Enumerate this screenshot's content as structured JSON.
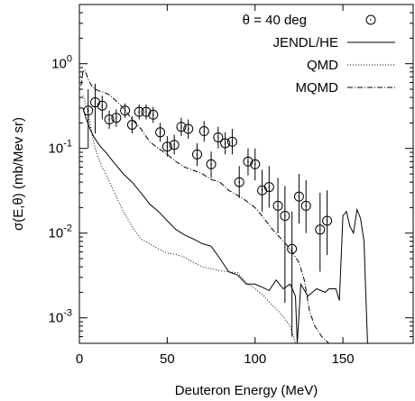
{
  "chart_data": {
    "type": "scatter",
    "title": "",
    "xlabel": "Deuteron Energy (MeV)",
    "ylabel": "σ(E,θ) (mb/Mev sr)",
    "xlim": [
      0,
      190
    ],
    "ylim": [
      0.0005,
      5
    ],
    "y_scale": "log",
    "x_ticks": [
      0,
      50,
      100,
      150
    ],
    "y_ticks": [
      0.001,
      0.01,
      0.1,
      1
    ],
    "y_tick_labels": [
      {
        "base": "10",
        "exp": "-3"
      },
      {
        "base": "10",
        "exp": "-2"
      },
      {
        "base": "10",
        "exp": "-1"
      },
      {
        "base": "10",
        "exp": "0"
      }
    ],
    "grid": false,
    "legend_position": "top-right",
    "series": [
      {
        "name": "θ = 40 deg",
        "kind": "points_with_errorbars",
        "points": [
          {
            "x": 5,
            "y": 0.28,
            "lo": 0.1,
            "hi": 0.5
          },
          {
            "x": 9,
            "y": 0.35,
            "lo": 0.15,
            "hi": 0.58
          },
          {
            "x": 13,
            "y": 0.32,
            "lo": 0.22,
            "hi": 0.42
          },
          {
            "x": 17,
            "y": 0.22,
            "lo": 0.17,
            "hi": 0.28
          },
          {
            "x": 21,
            "y": 0.23,
            "lo": 0.18,
            "hi": 0.29
          },
          {
            "x": 26,
            "y": 0.28,
            "lo": 0.23,
            "hi": 0.34
          },
          {
            "x": 30,
            "y": 0.19,
            "lo": 0.15,
            "hi": 0.24
          },
          {
            "x": 34,
            "y": 0.27,
            "lo": 0.22,
            "hi": 0.33
          },
          {
            "x": 38,
            "y": 0.27,
            "lo": 0.22,
            "hi": 0.33
          },
          {
            "x": 42,
            "y": 0.25,
            "lo": 0.2,
            "hi": 0.31
          },
          {
            "x": 46,
            "y": 0.155,
            "lo": 0.12,
            "hi": 0.2
          },
          {
            "x": 50,
            "y": 0.105,
            "lo": 0.08,
            "hi": 0.14
          },
          {
            "x": 54,
            "y": 0.11,
            "lo": 0.085,
            "hi": 0.145
          },
          {
            "x": 58,
            "y": 0.18,
            "lo": 0.14,
            "hi": 0.23
          },
          {
            "x": 62,
            "y": 0.17,
            "lo": 0.13,
            "hi": 0.22
          },
          {
            "x": 67,
            "y": 0.085,
            "lo": 0.062,
            "hi": 0.115
          },
          {
            "x": 71,
            "y": 0.16,
            "lo": 0.12,
            "hi": 0.21
          },
          {
            "x": 75,
            "y": 0.065,
            "lo": 0.045,
            "hi": 0.092
          },
          {
            "x": 79,
            "y": 0.135,
            "lo": 0.1,
            "hi": 0.18
          },
          {
            "x": 83,
            "y": 0.115,
            "lo": 0.085,
            "hi": 0.155
          },
          {
            "x": 87,
            "y": 0.12,
            "lo": 0.085,
            "hi": 0.17
          },
          {
            "x": 91,
            "y": 0.04,
            "lo": 0.026,
            "hi": 0.062
          },
          {
            "x": 96,
            "y": 0.07,
            "lo": 0.048,
            "hi": 0.1
          },
          {
            "x": 100,
            "y": 0.065,
            "lo": 0.042,
            "hi": 0.1
          },
          {
            "x": 104,
            "y": 0.032,
            "lo": 0.018,
            "hi": 0.056
          },
          {
            "x": 108,
            "y": 0.035,
            "lo": 0.02,
            "hi": 0.062
          },
          {
            "x": 113,
            "y": 0.021,
            "lo": 0.01,
            "hi": 0.045
          },
          {
            "x": 117,
            "y": 0.016,
            "lo": 0.0015,
            "hi": 0.036
          },
          {
            "x": 121,
            "y": 0.0065,
            "lo": 0.0006,
            "hi": 0.018
          },
          {
            "x": 125,
            "y": 0.027,
            "lo": 0.013,
            "hi": 0.05
          },
          {
            "x": 129,
            "y": 0.021,
            "lo": 0.01,
            "hi": 0.042
          },
          {
            "x": 137,
            "y": 0.011,
            "lo": 0.0035,
            "hi": 0.03
          },
          {
            "x": 141,
            "y": 0.014,
            "lo": 0.0055,
            "hi": 0.032
          }
        ]
      },
      {
        "name": "JENDL/HE",
        "kind": "line_solid",
        "x": [
          2,
          4,
          6,
          8,
          10,
          12,
          15,
          18,
          21,
          25,
          30,
          35,
          40,
          45,
          50,
          55,
          60,
          65,
          70,
          75,
          80,
          85,
          90,
          95,
          100,
          104,
          108,
          112,
          116,
          120,
          123,
          124,
          126,
          130,
          135,
          140,
          142,
          146,
          148,
          150,
          152,
          154,
          156,
          158,
          160,
          162,
          163,
          164
        ],
        "y": [
          0.3,
          0.22,
          0.17,
          0.14,
          0.12,
          0.105,
          0.09,
          0.075,
          0.063,
          0.05,
          0.04,
          0.03,
          0.022,
          0.018,
          0.014,
          0.011,
          0.0095,
          0.0085,
          0.0075,
          0.007,
          0.005,
          0.0035,
          0.0032,
          0.0025,
          0.0025,
          0.0023,
          0.0021,
          0.0028,
          0.0022,
          0.0025,
          0.0018,
          0.0005,
          0.0025,
          0.0018,
          0.0022,
          0.002,
          0.0022,
          0.0022,
          0.0016,
          0.016,
          0.018,
          0.012,
          0.01,
          0.019,
          0.015,
          0.008,
          0.002,
          0.0005
        ]
      },
      {
        "name": "QMD",
        "kind": "line_dotted",
        "x": [
          2,
          4,
          6,
          8,
          10,
          13,
          16,
          20,
          25,
          30,
          35,
          40,
          45,
          50,
          55,
          60,
          65,
          70,
          75,
          80,
          85,
          90,
          95,
          100,
          105,
          110,
          115,
          120,
          123
        ],
        "y": [
          0.42,
          0.32,
          0.2,
          0.12,
          0.085,
          0.06,
          0.045,
          0.03,
          0.018,
          0.012,
          0.0085,
          0.0075,
          0.0065,
          0.0058,
          0.0056,
          0.0052,
          0.0045,
          0.004,
          0.0038,
          0.0036,
          0.0035,
          0.0034,
          0.0026,
          0.0022,
          0.0018,
          0.0014,
          0.0011,
          0.0008,
          0.0005
        ]
      },
      {
        "name": "MQMD",
        "kind": "line_dashdot",
        "x": [
          1,
          2,
          3,
          4,
          5,
          7,
          9,
          11,
          14,
          17,
          20,
          25,
          30,
          35,
          40,
          45,
          50,
          55,
          60,
          65,
          70,
          75,
          80,
          85,
          90,
          95,
          100,
          105,
          110,
          115,
          120,
          125,
          128,
          131,
          134,
          138,
          142
        ],
        "y": [
          0.55,
          0.8,
          0.85,
          0.75,
          0.65,
          0.55,
          0.5,
          0.48,
          0.46,
          0.43,
          0.38,
          0.3,
          0.22,
          0.17,
          0.12,
          0.1,
          0.085,
          0.07,
          0.06,
          0.055,
          0.05,
          0.043,
          0.04,
          0.032,
          0.028,
          0.024,
          0.02,
          0.015,
          0.011,
          0.0085,
          0.0065,
          0.0045,
          0.0028,
          0.0012,
          0.0008,
          0.0006,
          0.0005
        ]
      }
    ]
  }
}
